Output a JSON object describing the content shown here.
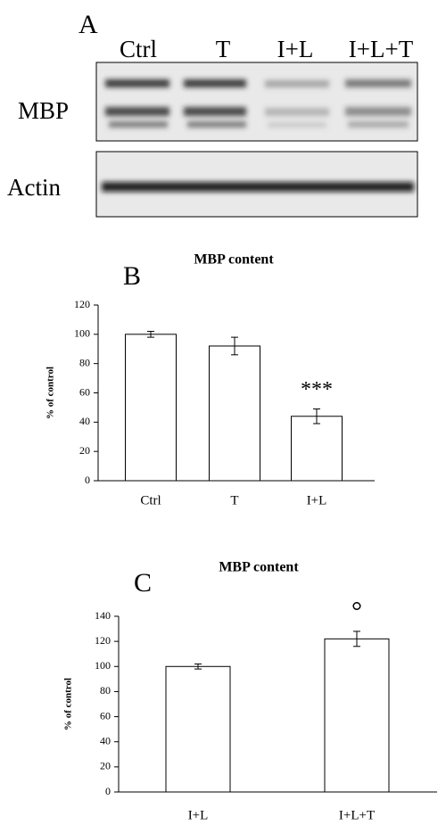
{
  "panel_a": {
    "label": "A",
    "lanes": [
      "Ctrl",
      "T",
      "I+L",
      "I+L+T"
    ],
    "rows": [
      "MBP",
      "Actin"
    ]
  },
  "chart_data": [
    {
      "type": "bar",
      "panel_label": "B",
      "title": "MBP content",
      "y_label": "% of control",
      "categories": [
        "Ctrl",
        "T",
        "I+L"
      ],
      "values": [
        100,
        92,
        44
      ],
      "errors": [
        2,
        6,
        5
      ],
      "color": "#ffffff",
      "ylim": [
        0,
        120
      ],
      "yticks": [
        0,
        20,
        40,
        60,
        80,
        100,
        120
      ],
      "annotations": [
        {
          "text": "***",
          "category": "I+L"
        }
      ]
    },
    {
      "type": "bar",
      "panel_label": "C",
      "title": "MBP content",
      "y_label": "% of control",
      "categories": [
        "I+L",
        "I+L+T"
      ],
      "values": [
        100,
        122
      ],
      "errors": [
        2,
        6
      ],
      "color": "#ffffff",
      "ylim": [
        0,
        140
      ],
      "yticks": [
        0,
        20,
        40,
        60,
        80,
        100,
        120,
        140
      ],
      "annotations": [
        {
          "text": "°",
          "category": "I+L+T"
        }
      ]
    }
  ]
}
